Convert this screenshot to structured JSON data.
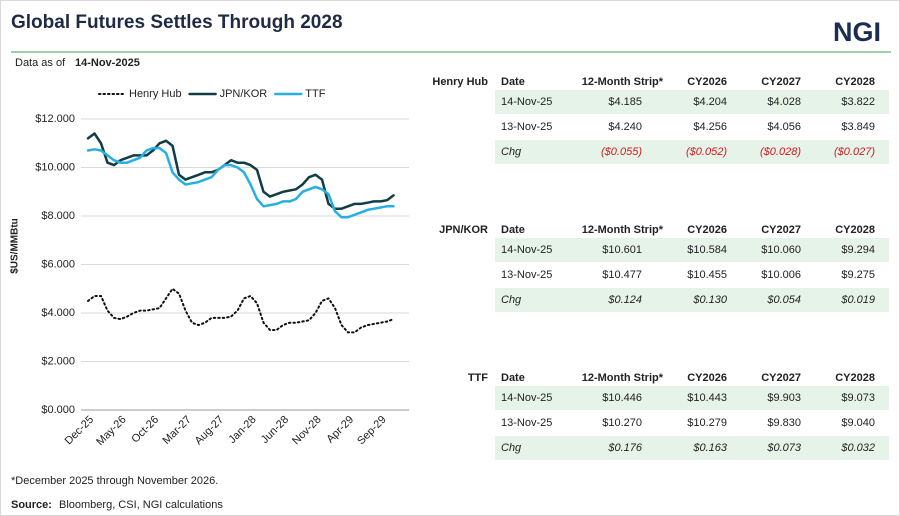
{
  "header": {
    "title": "Global Futures Settles Through 2028",
    "logo": "NGI",
    "as_of_label": "Data as of",
    "as_of_date": "14-Nov-2025"
  },
  "chart_data": {
    "type": "line",
    "categories": [
      "Dec-25",
      null,
      null,
      null,
      null,
      "May-26",
      null,
      null,
      null,
      null,
      "Oct-26",
      null,
      null,
      null,
      null,
      "Mar-27",
      null,
      null,
      null,
      null,
      "Aug-27",
      null,
      null,
      null,
      null,
      "Jan-28",
      null,
      null,
      null,
      null,
      "Jun-28",
      null,
      null,
      null,
      null,
      "Nov-28",
      null,
      null,
      null,
      null,
      "Apr-29",
      null,
      null,
      null,
      null,
      "Sep-29",
      null,
      null
    ],
    "series": [
      {
        "name": "Henry Hub",
        "color": "#111111",
        "dash": true,
        "values": [
          4.5,
          4.7,
          4.7,
          4.1,
          3.8,
          3.75,
          3.85,
          4.0,
          4.1,
          4.1,
          4.15,
          4.2,
          4.6,
          5.0,
          4.8,
          4.1,
          3.6,
          3.5,
          3.6,
          3.8,
          3.8,
          3.8,
          3.85,
          4.1,
          4.6,
          4.7,
          4.4,
          3.6,
          3.3,
          3.3,
          3.5,
          3.6,
          3.6,
          3.65,
          3.7,
          4.0,
          4.5,
          4.6,
          4.2,
          3.5,
          3.2,
          3.2,
          3.4,
          3.5,
          3.55,
          3.6,
          3.65,
          3.75
        ]
      },
      {
        "name": "JPN/KOR",
        "color": "#123c46",
        "dash": false,
        "values": [
          11.2,
          11.4,
          11.0,
          10.2,
          10.1,
          10.3,
          10.4,
          10.5,
          10.5,
          10.5,
          10.7,
          11.0,
          11.1,
          10.9,
          9.7,
          9.5,
          9.6,
          9.7,
          9.8,
          9.8,
          9.9,
          10.1,
          10.3,
          10.2,
          10.2,
          10.1,
          9.9,
          9.0,
          8.8,
          8.9,
          9.0,
          9.05,
          9.1,
          9.3,
          9.6,
          9.7,
          9.5,
          8.5,
          8.3,
          8.3,
          8.4,
          8.5,
          8.5,
          8.55,
          8.6,
          8.6,
          8.65,
          8.85
        ]
      },
      {
        "name": "TTF",
        "color": "#27aee3",
        "dash": false,
        "values": [
          10.7,
          10.75,
          10.7,
          10.5,
          10.3,
          10.2,
          10.2,
          10.3,
          10.4,
          10.7,
          10.8,
          10.8,
          10.6,
          9.8,
          9.5,
          9.3,
          9.35,
          9.4,
          9.5,
          9.6,
          9.9,
          10.1,
          10.1,
          10.0,
          9.8,
          9.3,
          8.7,
          8.4,
          8.45,
          8.5,
          8.6,
          8.6,
          8.7,
          9.0,
          9.1,
          9.2,
          9.1,
          8.9,
          8.2,
          7.95,
          7.95,
          8.05,
          8.15,
          8.25,
          8.3,
          8.35,
          8.4,
          8.4
        ]
      }
    ],
    "ylabel": "$US/MMBtu",
    "ylim": [
      0,
      12
    ],
    "yticks": [
      {
        "value": 0,
        "label": "$0.000"
      },
      {
        "value": 2,
        "label": "$2.000"
      },
      {
        "value": 4,
        "label": "$4.000"
      },
      {
        "value": 6,
        "label": "$6.000"
      },
      {
        "value": 8,
        "label": "$8.000"
      },
      {
        "value": 10,
        "label": "$10.000"
      },
      {
        "value": 12,
        "label": "$12.000"
      }
    ],
    "grid": true,
    "legend": "top"
  },
  "tables": [
    {
      "label": "Henry Hub",
      "columns": [
        "Date",
        "12-Month Strip*",
        "CY2026",
        "CY2027",
        "CY2028"
      ],
      "rows": [
        [
          "14-Nov-25",
          "$4.185",
          "$4.204",
          "$4.028",
          "$3.822"
        ],
        [
          "13-Nov-25",
          "$4.240",
          "$4.256",
          "$4.056",
          "$3.849"
        ],
        [
          "Chg",
          "($0.055)",
          "($0.052)",
          "($0.028)",
          "($0.027)"
        ]
      ]
    },
    {
      "label": "JPN/KOR",
      "columns": [
        "Date",
        "12-Month Strip*",
        "CY2026",
        "CY2027",
        "CY2028"
      ],
      "rows": [
        [
          "14-Nov-25",
          "$10.601",
          "$10.584",
          "$10.060",
          "$9.294"
        ],
        [
          "13-Nov-25",
          "$10.477",
          "$10.455",
          "$10.006",
          "$9.275"
        ],
        [
          "Chg",
          "$0.124",
          "$0.130",
          "$0.054",
          "$0.019"
        ]
      ]
    },
    {
      "label": "TTF",
      "columns": [
        "Date",
        "12-Month Strip*",
        "CY2026",
        "CY2027",
        "CY2028"
      ],
      "rows": [
        [
          "14-Nov-25",
          "$10.446",
          "$10.443",
          "$9.903",
          "$9.073"
        ],
        [
          "13-Nov-25",
          "$10.270",
          "$10.279",
          "$9.830",
          "$9.040"
        ],
        [
          "Chg",
          "$0.176",
          "$0.163",
          "$0.073",
          "$0.032"
        ]
      ]
    }
  ],
  "footnote": "*December 2025 through November 2026.",
  "source": {
    "label": "Source:",
    "text": "Bloomberg, CSI, NGI calculations"
  }
}
